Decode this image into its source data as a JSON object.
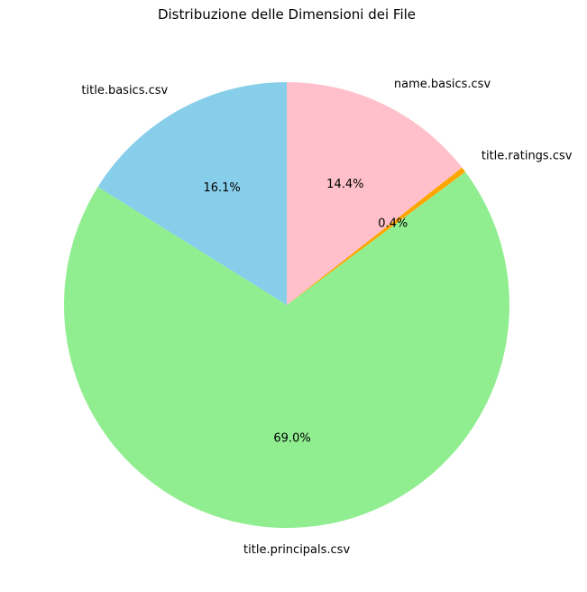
{
  "chart_data": {
    "type": "pie",
    "title": "Distribuzione delle Dimensioni dei File",
    "start_angle": 90,
    "direction": "counterclockwise",
    "slices": [
      {
        "label": "title.basics.csv",
        "value": 16.1,
        "pct_label": "16.1%",
        "color": "#87CEEB"
      },
      {
        "label": "title.principals.csv",
        "value": 69.0,
        "pct_label": "69.0%",
        "color": "#90EE90"
      },
      {
        "label": "title.ratings.csv",
        "value": 0.4,
        "pct_label": "0.4%",
        "color": "#FFA500"
      },
      {
        "label": "name.basics.csv",
        "value": 14.4,
        "pct_label": "14.4%",
        "color": "#FFC0CB"
      }
    ]
  }
}
